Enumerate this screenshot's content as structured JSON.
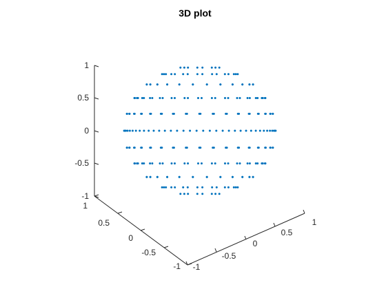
{
  "chart_data": {
    "type": "scatter",
    "title": "3D plot",
    "point_color": "#0072BD",
    "grid": false,
    "xlim": [
      -1,
      1
    ],
    "ylim": [
      -1,
      1
    ],
    "zlim": [
      -1,
      1
    ],
    "xticks": [
      "-1",
      "-0.5",
      "0",
      "0.5",
      "1"
    ],
    "yticks": [
      "-1",
      "-0.5",
      "0",
      "0.5",
      "1"
    ],
    "zticks": [
      "-1",
      "-0.5",
      "0",
      "0.5",
      "1"
    ],
    "shape": "unit sphere",
    "ring_latitudes_deg": [
      -75,
      -60,
      -45,
      -30,
      -15,
      0,
      15,
      30,
      45,
      60,
      75
    ],
    "points_per_ring": [
      8,
      16,
      24,
      30,
      34,
      36,
      34,
      30,
      24,
      16,
      8
    ]
  }
}
